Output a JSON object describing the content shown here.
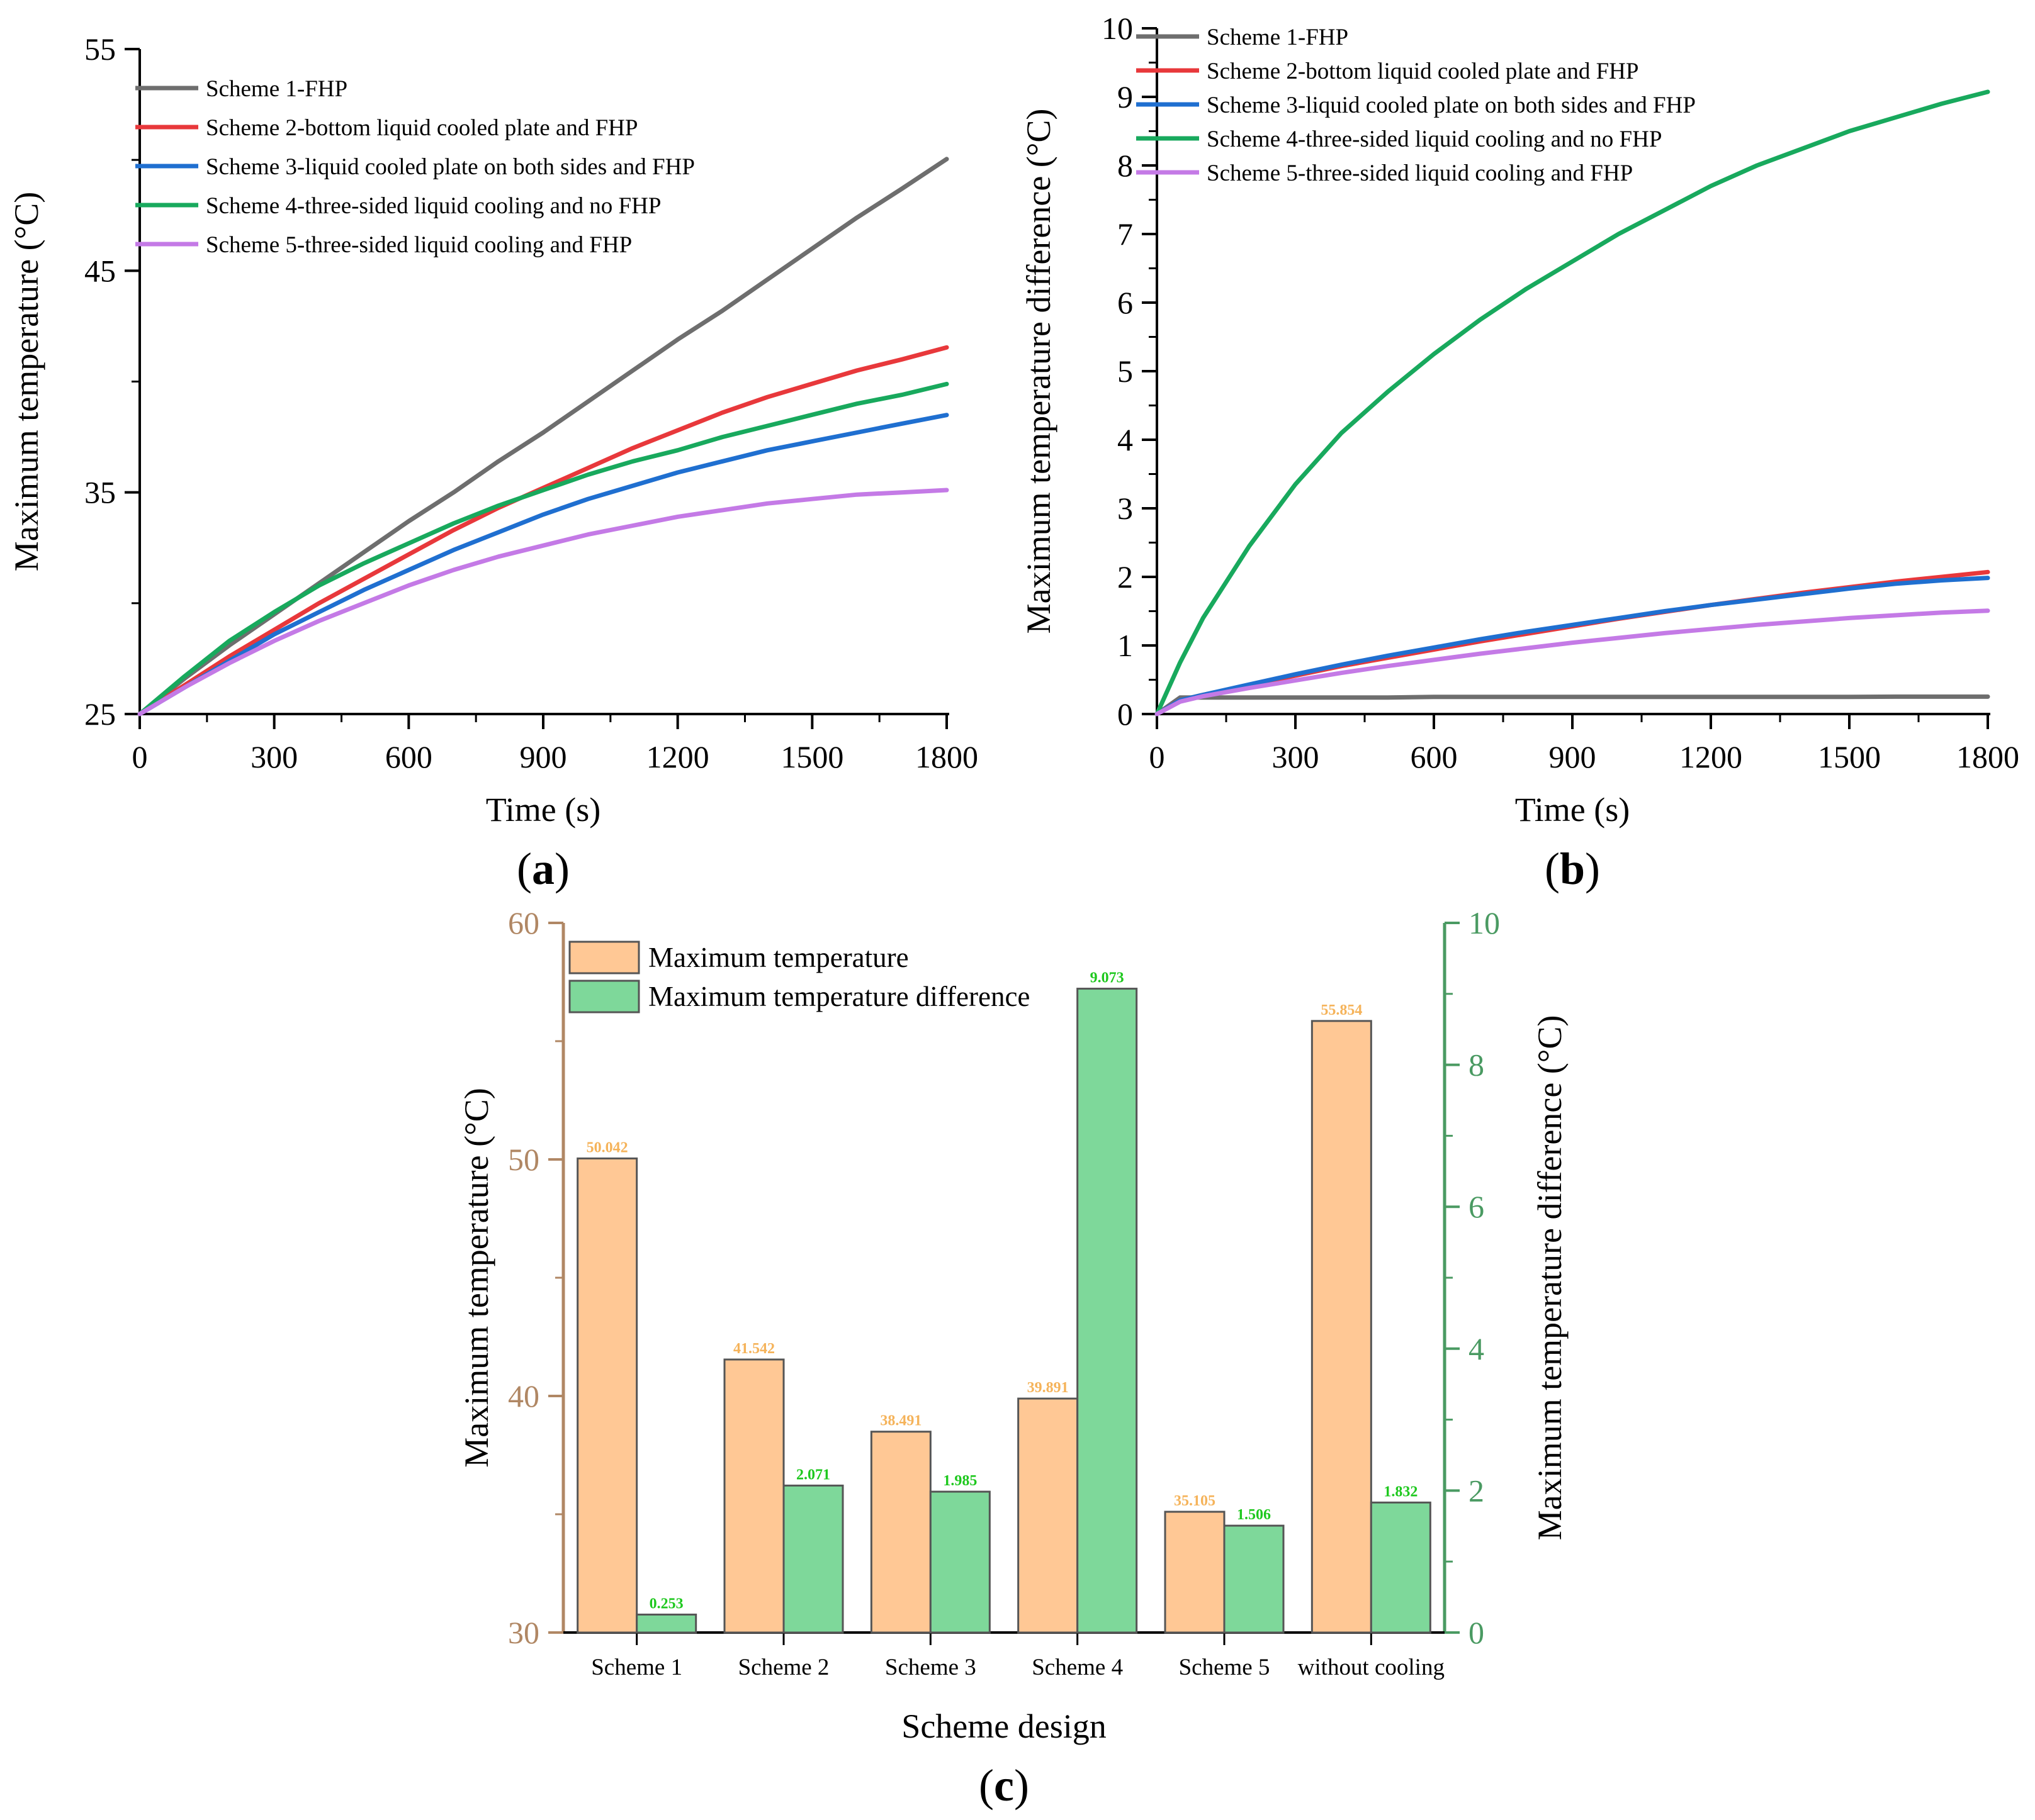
{
  "colors": {
    "scheme1": "#6e6e6e",
    "scheme2": "#e8383b",
    "scheme3": "#1f6fd0",
    "scheme4": "#18a95d",
    "scheme5": "#c47ae6",
    "bar_temp": "#ffc895",
    "bar_diff": "#7ed89a",
    "left_axis_c": "#b08764",
    "right_axis_c": "#4a9a62",
    "label_temp": "#f5b35a",
    "label_diff": "#1ec81e"
  },
  "chart_data": [
    {
      "panel": "a",
      "panel_label": "a",
      "type": "line",
      "xlabel": "Time (s)",
      "ylabel": "Maximum temperature (°C)",
      "xlim": [
        0,
        1800
      ],
      "ylim": [
        25,
        55
      ],
      "xticks": [
        0,
        300,
        600,
        900,
        1200,
        1500,
        1800
      ],
      "yticks": [
        25,
        35,
        45,
        55
      ],
      "x": [
        0,
        100,
        200,
        300,
        400,
        500,
        600,
        700,
        800,
        900,
        1000,
        1100,
        1200,
        1300,
        1400,
        1500,
        1600,
        1700,
        1800
      ],
      "series": [
        {
          "name": "Scheme 1-FHP",
          "color_key": "scheme1",
          "values": [
            25,
            26.6,
            28.1,
            29.5,
            30.9,
            32.3,
            33.7,
            35.0,
            36.4,
            37.7,
            39.1,
            40.5,
            41.9,
            43.2,
            44.6,
            46.0,
            47.4,
            48.7,
            50.04
          ]
        },
        {
          "name": "Scheme 2-bottom liquid cooled plate and FHP",
          "color_key": "scheme2",
          "values": [
            25,
            26.3,
            27.6,
            28.8,
            30.0,
            31.1,
            32.2,
            33.3,
            34.3,
            35.2,
            36.1,
            37.0,
            37.8,
            38.6,
            39.3,
            39.9,
            40.5,
            41.0,
            41.54
          ]
        },
        {
          "name": "Scheme 3-liquid cooled plate on both sides and FHP",
          "color_key": "scheme3",
          "values": [
            25,
            26.2,
            27.4,
            28.6,
            29.6,
            30.6,
            31.5,
            32.4,
            33.2,
            34.0,
            34.7,
            35.3,
            35.9,
            36.4,
            36.9,
            37.3,
            37.7,
            38.1,
            38.49
          ]
        },
        {
          "name": "Scheme 4-three-sided liquid cooling and no FHP",
          "color_key": "scheme4",
          "values": [
            25,
            26.7,
            28.3,
            29.6,
            30.8,
            31.8,
            32.7,
            33.6,
            34.4,
            35.1,
            35.8,
            36.4,
            36.9,
            37.5,
            38.0,
            38.5,
            39.0,
            39.4,
            39.89
          ]
        },
        {
          "name": "Scheme 5-three-sided liquid cooling and FHP",
          "color_key": "scheme5",
          "values": [
            25,
            26.2,
            27.3,
            28.3,
            29.2,
            30.0,
            30.8,
            31.5,
            32.1,
            32.6,
            33.1,
            33.5,
            33.9,
            34.2,
            34.5,
            34.7,
            34.9,
            35.0,
            35.105
          ]
        }
      ],
      "legend_position": "top-left"
    },
    {
      "panel": "b",
      "panel_label": "b",
      "type": "line",
      "xlabel": "Time (s)",
      "ylabel": "Maximum temperature difference (°C)",
      "xlim": [
        0,
        1800
      ],
      "ylim": [
        0,
        10
      ],
      "xticks": [
        0,
        300,
        600,
        900,
        1200,
        1500,
        1800
      ],
      "yticks": [
        0,
        1,
        2,
        3,
        4,
        5,
        6,
        7,
        8,
        9,
        10
      ],
      "x": [
        0,
        50,
        100,
        200,
        300,
        400,
        500,
        600,
        700,
        800,
        900,
        1000,
        1100,
        1200,
        1300,
        1400,
        1500,
        1600,
        1700,
        1800
      ],
      "series": [
        {
          "name": "Scheme 1-FHP",
          "color_key": "scheme1",
          "values": [
            0,
            0.24,
            0.24,
            0.24,
            0.24,
            0.24,
            0.24,
            0.25,
            0.25,
            0.25,
            0.25,
            0.25,
            0.25,
            0.25,
            0.25,
            0.25,
            0.25,
            0.253,
            0.253,
            0.253
          ]
        },
        {
          "name": "Scheme 2-bottom liquid cooled plate and FHP",
          "color_key": "scheme2",
          "values": [
            0,
            0.2,
            0.28,
            0.42,
            0.56,
            0.7,
            0.82,
            0.94,
            1.06,
            1.17,
            1.28,
            1.39,
            1.49,
            1.59,
            1.68,
            1.77,
            1.85,
            1.93,
            2.0,
            2.071
          ]
        },
        {
          "name": "Scheme 3-liquid cooled plate on both sides and FHP",
          "color_key": "scheme3",
          "values": [
            0,
            0.2,
            0.28,
            0.43,
            0.58,
            0.72,
            0.85,
            0.97,
            1.09,
            1.2,
            1.3,
            1.4,
            1.5,
            1.59,
            1.67,
            1.75,
            1.83,
            1.9,
            1.95,
            1.985
          ]
        },
        {
          "name": "Scheme 4-three-sided liquid cooling and no FHP",
          "color_key": "scheme4",
          "values": [
            0,
            0.75,
            1.4,
            2.45,
            3.35,
            4.1,
            4.7,
            5.25,
            5.75,
            6.2,
            6.6,
            7.0,
            7.35,
            7.7,
            8.0,
            8.25,
            8.5,
            8.7,
            8.9,
            9.073
          ]
        },
        {
          "name": "Scheme 5-three-sided liquid cooling and FHP",
          "color_key": "scheme5",
          "values": [
            0,
            0.18,
            0.26,
            0.38,
            0.49,
            0.6,
            0.7,
            0.79,
            0.88,
            0.96,
            1.04,
            1.11,
            1.18,
            1.24,
            1.3,
            1.35,
            1.4,
            1.44,
            1.48,
            1.506
          ]
        }
      ],
      "legend_position": "top-left"
    },
    {
      "panel": "c",
      "panel_label": "c",
      "type": "bar",
      "xlabel": "Scheme design",
      "ylabel": "Maximum temperature (°C)",
      "ylabel_right": "Maximum temperature difference (°C)",
      "ylim": [
        30,
        60
      ],
      "ylim_right": [
        0,
        10
      ],
      "yticks": [
        30,
        40,
        50,
        60
      ],
      "yticks_right": [
        0,
        2,
        4,
        6,
        8,
        10
      ],
      "categories": [
        "Scheme 1",
        "Scheme 2",
        "Scheme 3",
        "Scheme 4",
        "Scheme 5",
        "without cooling"
      ],
      "series": [
        {
          "name": "Maximum temperature",
          "axis": "left",
          "color_key": "bar_temp",
          "label_color_key": "label_temp",
          "values": [
            50.042,
            41.542,
            38.491,
            39.891,
            35.105,
            55.854
          ],
          "labels": [
            "50.042",
            "41.542",
            "38.491",
            "39.891",
            "35.105",
            "55.854"
          ]
        },
        {
          "name": "Maximum temperature difference",
          "axis": "right",
          "color_key": "bar_diff",
          "label_color_key": "label_diff",
          "values": [
            0.253,
            2.071,
            1.985,
            9.073,
            1.506,
            1.832
          ],
          "labels": [
            "0.253",
            "2.071",
            "1.985",
            "9.073",
            "1.506",
            "1.832"
          ]
        }
      ],
      "legend_position": "top-left"
    }
  ]
}
